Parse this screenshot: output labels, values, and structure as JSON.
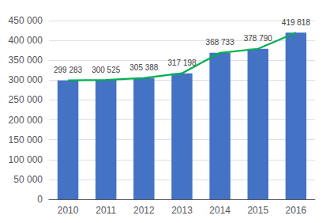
{
  "chart_data": {
    "type": "bar",
    "categories": [
      "2010",
      "2011",
      "2012",
      "2013",
      "2014",
      "2015",
      "2016"
    ],
    "series": [
      {
        "type": "bar",
        "color": "#4472c4",
        "values": [
          299283,
          300525,
          305388,
          317198,
          368733,
          378790,
          419818
        ],
        "value_labels": [
          "299 283",
          "300 525",
          "305 388",
          "317 198",
          "368 733",
          "378 790",
          "419 818"
        ]
      },
      {
        "type": "line",
        "color": "#00b050",
        "values": [
          299283,
          300525,
          305388,
          317198,
          368733,
          378790,
          419818
        ]
      }
    ],
    "ylim": [
      0,
      450000
    ],
    "yticks": [
      0,
      {
        "value": 50000,
        "label": "50 000"
      },
      {
        "value": 100000,
        "label": "100 000"
      },
      {
        "value": 150000,
        "label": "150 000"
      },
      {
        "value": 200000,
        "label": "200 000"
      },
      {
        "value": 250000,
        "label": "250 000"
      },
      {
        "value": 300000,
        "label": "300 000"
      },
      {
        "value": 350000,
        "label": "350 000"
      },
      {
        "value": 400000,
        "label": "400 000"
      },
      {
        "value": 450000,
        "label": "450 000"
      }
    ],
    "grid": true
  }
}
